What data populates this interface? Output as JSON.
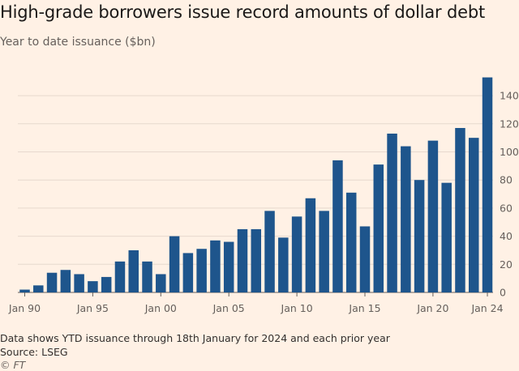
{
  "chart_data": {
    "type": "bar",
    "title": "High-grade borrowers issue record amounts of dollar debt",
    "subtitle": "Year to date issuance ($bn)",
    "xlabel": "",
    "ylabel": "",
    "ylim": [
      0,
      160
    ],
    "yticks": [
      0,
      20,
      40,
      60,
      80,
      100,
      120,
      140
    ],
    "categories": [
      1990,
      1991,
      1992,
      1993,
      1994,
      1995,
      1996,
      1997,
      1998,
      1999,
      2000,
      2001,
      2002,
      2003,
      2004,
      2005,
      2006,
      2007,
      2008,
      2009,
      2010,
      2011,
      2012,
      2013,
      2014,
      2015,
      2016,
      2017,
      2018,
      2019,
      2020,
      2021,
      2022,
      2023,
      2024
    ],
    "values": [
      2,
      5,
      14,
      16,
      13,
      8,
      11,
      22,
      30,
      22,
      13,
      40,
      28,
      31,
      37,
      36,
      45,
      45,
      58,
      39,
      54,
      67,
      58,
      94,
      71,
      47,
      91,
      113,
      104,
      80,
      108,
      78,
      117,
      110,
      153
    ],
    "xtick_labels": [
      {
        "year": 1990,
        "label": "Jan 90"
      },
      {
        "year": 1995,
        "label": "Jan 95"
      },
      {
        "year": 2000,
        "label": "Jan 00"
      },
      {
        "year": 2005,
        "label": "Jan 05"
      },
      {
        "year": 2010,
        "label": "Jan 10"
      },
      {
        "year": 2015,
        "label": "Jan 15"
      },
      {
        "year": 2020,
        "label": "Jan 20"
      },
      {
        "year": 2024,
        "label": "Jan 24"
      }
    ],
    "bar_color": "#1e558c",
    "grid": true
  },
  "footer": {
    "note": "Data shows YTD issuance through 18th January for 2024 and each prior year",
    "source": "Source: LSEG",
    "credit": "© FT"
  }
}
